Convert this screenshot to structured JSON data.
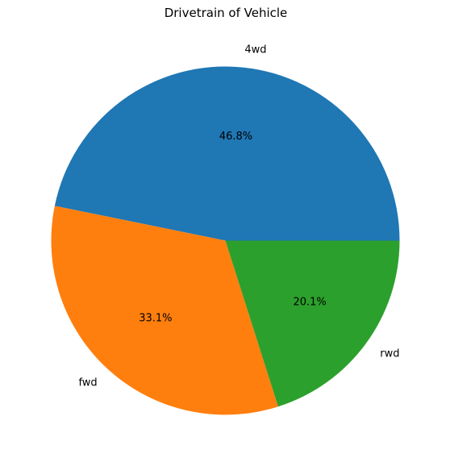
{
  "chart_data": {
    "type": "pie",
    "title": "Drivetrain of Vehicle",
    "start_angle_deg": 0,
    "direction": "counterclockwise",
    "slices": [
      {
        "label": "4wd",
        "value": 46.8,
        "pct_label": "46.8%",
        "color": "#1f77b4"
      },
      {
        "label": "fwd",
        "value": 33.1,
        "pct_label": "33.1%",
        "color": "#ff7f0e"
      },
      {
        "label": "rwd",
        "value": 20.1,
        "pct_label": "20.1%",
        "color": "#2ca02c"
      }
    ]
  }
}
